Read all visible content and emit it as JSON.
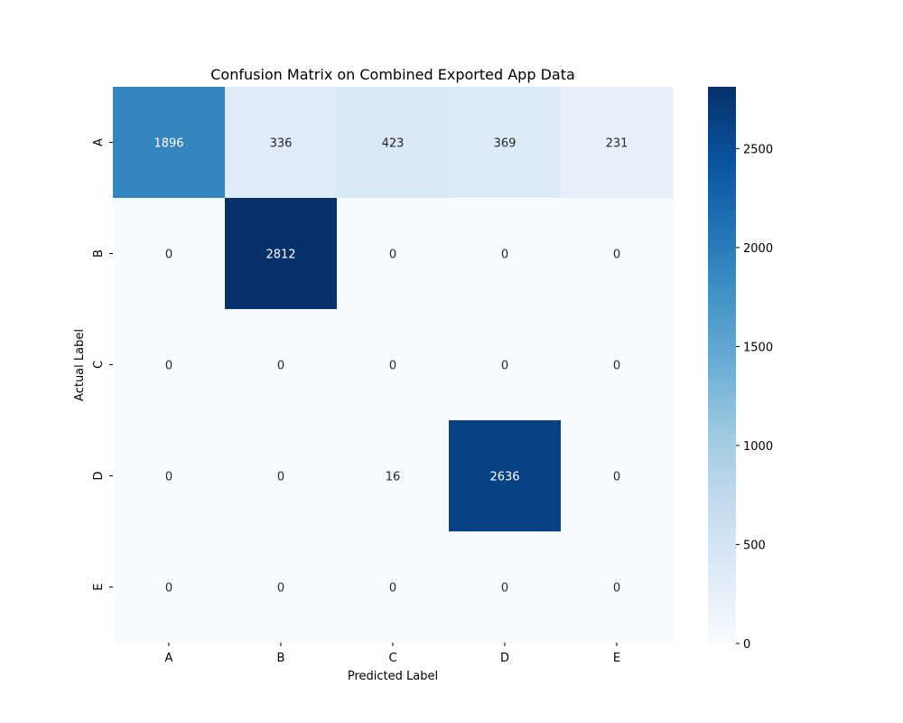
{
  "chart_data": {
    "type": "heatmap",
    "title": "Confusion Matrix on Combined Exported App Data",
    "xlabel": "Predicted Label",
    "ylabel": "Actual Label",
    "x_categories": [
      "A",
      "B",
      "C",
      "D",
      "E"
    ],
    "y_categories": [
      "A",
      "B",
      "C",
      "D",
      "E"
    ],
    "values": [
      [
        1896,
        336,
        423,
        369,
        231
      ],
      [
        0,
        2812,
        0,
        0,
        0
      ],
      [
        0,
        0,
        0,
        0,
        0
      ],
      [
        0,
        0,
        16,
        2636,
        0
      ],
      [
        0,
        0,
        0,
        0,
        0
      ]
    ],
    "colormap": "Blues",
    "colorbar": {
      "range": [
        0,
        2812
      ],
      "ticks": [
        0,
        500,
        1000,
        1500,
        2000,
        2500
      ]
    },
    "annotations": "cell values shown"
  }
}
